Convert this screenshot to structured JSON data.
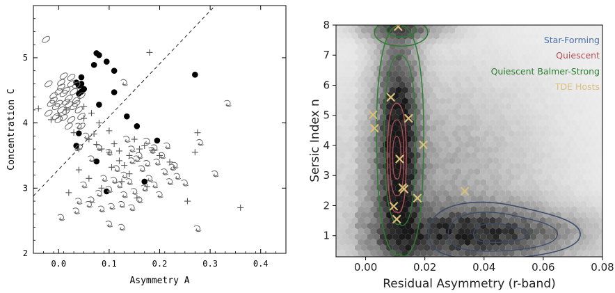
{
  "chart_data": [
    {
      "type": "scatter",
      "title": "",
      "xlabel": "Asymmetry A",
      "ylabel": "Concentration C",
      "xlim": [
        -0.05,
        0.45
      ],
      "ylim": [
        2.0,
        5.8
      ],
      "xticks": [
        "0.0",
        "0.1",
        "0.2",
        "0.3",
        "0.4"
      ],
      "yticks": [
        "2",
        "3",
        "4",
        "5"
      ],
      "grid": false,
      "dividing_line": {
        "style": "dashed",
        "points": [
          [
            -0.05,
            2.88
          ],
          [
            0.31,
            5.8
          ]
        ]
      },
      "series": [
        {
          "marker": "filled-circle",
          "x": [
            0.035,
            0.04,
            0.045,
            0.04,
            0.05,
            0.045,
            0.07,
            0.075,
            0.08,
            0.095,
            0.11,
            0.11,
            0.08,
            0.135,
            0.155,
            0.195,
            0.27,
            0.17,
            0.095,
            0.075,
            0.04,
            0.035,
            0.045,
            0.05
          ],
          "y": [
            4.62,
            4.45,
            4.7,
            4.57,
            4.52,
            4.48,
            4.89,
            5.07,
            5.04,
            4.94,
            4.8,
            4.47,
            4.28,
            4.1,
            3.95,
            3.73,
            4.74,
            3.1,
            2.95,
            3.41,
            3.84,
            3.65,
            4.6,
            4.52
          ]
        },
        {
          "marker": "plus",
          "x": [
            -0.04,
            -0.015,
            0.0,
            0.015,
            0.03,
            0.05,
            0.06,
            0.07,
            0.075,
            0.085,
            0.1,
            0.11,
            0.12,
            0.13,
            0.14,
            0.15,
            0.16,
            0.17,
            0.185,
            0.2,
            0.22,
            0.27,
            0.275,
            0.255,
            0.36,
            0.04,
            0.06,
            0.085,
            0.105,
            0.125,
            0.14,
            0.155,
            0.175,
            0.04,
            0.02,
            0.05,
            0.065,
            0.08,
            0.1,
            0.18,
            0.12
          ],
          "y": [
            4.22,
            4.05,
            4.12,
            4.2,
            3.85,
            4.07,
            3.75,
            3.83,
            3.67,
            3.6,
            3.88,
            3.68,
            3.57,
            3.35,
            3.5,
            3.75,
            3.6,
            3.65,
            3.58,
            3.5,
            3.4,
            3.55,
            3.85,
            2.8,
            2.7,
            3.28,
            3.15,
            3.0,
            3.32,
            3.1,
            3.22,
            2.85,
            3.02,
            3.6,
            2.93,
            4.25,
            4.15,
            4.0,
            3.55,
            5.08,
            3.42
          ]
        },
        {
          "marker": "ellipse",
          "x": [
            -0.025,
            -0.02,
            -0.01,
            -0.005,
            0.0,
            0.005,
            0.01,
            0.015,
            0.02,
            0.025,
            0.03,
            0.035,
            0.04,
            0.045,
            -0.02,
            -0.01,
            0.0,
            0.01,
            0.02,
            0.03,
            0.005,
            0.015,
            0.025,
            0.035,
            0.045,
            -0.015,
            0.005,
            0.025,
            0.045,
            0.0,
            0.015,
            0.035,
            -0.005,
            0.02,
            0.04,
            0.01
          ],
          "y": [
            5.28,
            4.6,
            4.42,
            4.25,
            4.3,
            4.55,
            4.45,
            4.18,
            4.28,
            4.6,
            4.48,
            4.35,
            4.2,
            4.1,
            4.15,
            4.35,
            4.05,
            4.08,
            4.38,
            4.25,
            4.62,
            4.5,
            4.7,
            4.3,
            3.95,
            4.3,
            4.2,
            4.05,
            4.42,
            4.48,
            4.32,
            4.58,
            4.1,
            3.95,
            3.62,
            4.72
          ]
        },
        {
          "marker": "spiral",
          "x": [
            0.13,
            0.135,
            0.145,
            0.155,
            0.165,
            0.175,
            0.185,
            0.195,
            0.205,
            0.215,
            0.225,
            0.235,
            0.25,
            0.28,
            0.31,
            0.335,
            0.275,
            0.05,
            0.065,
            0.08,
            0.09,
            0.1,
            0.11,
            0.12,
            0.13,
            0.14,
            0.15,
            0.16,
            0.17,
            0.18,
            0.19,
            0.2,
            0.21,
            0.22,
            0.23,
            0.065,
            0.08,
            0.1,
            0.115,
            0.13,
            0.145,
            0.16,
            0.175,
            0.19,
            0.005,
            0.035,
            0.04,
            0.06,
            0.085,
            0.105,
            0.125,
            0.145,
            0.1,
            0.125,
            0.04,
            0.055
          ],
          "y": [
            4.62,
            3.75,
            3.6,
            3.45,
            3.3,
            3.72,
            3.58,
            3.4,
            3.5,
            3.65,
            3.32,
            3.18,
            3.08,
            3.7,
            3.22,
            4.3,
            2.38,
            3.05,
            2.82,
            2.92,
            3.15,
            2.98,
            3.12,
            3.05,
            2.9,
            3.1,
            2.95,
            2.82,
            3.0,
            3.15,
            3.05,
            2.9,
            3.25,
            3.1,
            3.35,
            3.45,
            3.62,
            3.55,
            3.3,
            3.2,
            3.42,
            3.5,
            3.38,
            3.62,
            2.55,
            2.65,
            2.8,
            2.75,
            2.68,
            2.72,
            2.75,
            2.7,
            2.45,
            2.4,
            3.95,
            3.8
          ]
        }
      ]
    },
    {
      "type": "heatmap",
      "title": "",
      "xlabel": "Residual Asymmetry (r-band)",
      "ylabel": "Sersic Index n",
      "xlim": [
        -0.01,
        0.08
      ],
      "ylim": [
        0.3,
        8.0
      ],
      "xticks": [
        "0.00",
        "0.02",
        "0.04",
        "0.06",
        "0.08"
      ],
      "yticks": [
        "1",
        "2",
        "3",
        "4",
        "5",
        "6",
        "7",
        "8"
      ],
      "legend_placement": "top-right",
      "legend": [
        {
          "name": "Star-Forming",
          "color": "#4a6fa5",
          "kind": "contour"
        },
        {
          "name": "Quiescent",
          "color": "#b0505a",
          "kind": "contour"
        },
        {
          "name": "Quiescent Balmer-Strong",
          "color": "#2e7d32",
          "kind": "contour"
        },
        {
          "name": "TDE Hosts",
          "color": "#d8c07a",
          "kind": "marker-x"
        }
      ],
      "contours": [
        {
          "group": "Star-Forming",
          "center": [
            0.045,
            1.05
          ],
          "levels": [
            [
              0.025,
              0.9
            ],
            [
              0.018,
              0.62
            ],
            [
              0.009,
              0.3
            ]
          ],
          "line_color": "#3a4a6a"
        },
        {
          "group": "Quiescent",
          "center": [
            0.0105,
            3.6
          ],
          "levels": [
            [
              0.003,
              1.8
            ],
            [
              0.0022,
              1.25
            ],
            [
              0.0013,
              0.7
            ]
          ],
          "line_color": "#b0505a"
        },
        {
          "group": "Quiescent Balmer-Strong",
          "center": [
            0.0115,
            4.2
          ],
          "levels": [
            [
              0.0075,
              3.8
            ],
            [
              0.005,
              2.8
            ]
          ],
          "line_color": "#2e7d32"
        }
      ],
      "tde_hosts": {
        "x": [
          0.011,
          0.0025,
          0.003,
          0.0085,
          0.0145,
          0.0115,
          0.0125,
          0.013,
          0.0095,
          0.0105,
          0.0195,
          0.0175,
          0.0335
        ],
        "y": [
          7.95,
          5.02,
          4.57,
          5.6,
          4.9,
          3.55,
          2.6,
          2.55,
          1.98,
          1.55,
          4.02,
          2.25,
          2.48
        ]
      }
    }
  ]
}
